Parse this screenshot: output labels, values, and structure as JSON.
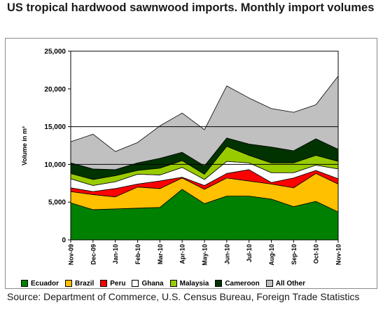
{
  "title": "US tropical hardwood sawnwood imports. Monthly import volumes",
  "source": "Source: Department of Commerce, U.S. Census Bureau, Foreign Trade Statistics",
  "chart_data": {
    "type": "area",
    "stacked": true,
    "ylabel": "Volume in m³",
    "ylim": [
      0,
      25000
    ],
    "yticks": [
      "0",
      "5,000",
      "10,000",
      "15,000",
      "20,000",
      "25,000"
    ],
    "grid": "horizontal at 10,000 and 15,000",
    "legend_position": "bottom",
    "categories": [
      "Nov-09",
      "Dec-09",
      "Jan-10",
      "Feb-10",
      "Mar-10",
      "Apr-10",
      "May-10",
      "Jun-10",
      "Jul-10",
      "Aug-10",
      "Sep-10",
      "Oct-10",
      "Nov-10"
    ],
    "series": [
      {
        "name": "Ecuador",
        "color": "#008000",
        "values": [
          4900,
          4000,
          4100,
          4200,
          4300,
          6700,
          4800,
          5800,
          5800,
          5400,
          4400,
          5100,
          3700
        ]
      },
      {
        "name": "Brazil",
        "color": "#ffc000",
        "values": [
          1500,
          2000,
          1600,
          2800,
          2500,
          1500,
          1900,
          2400,
          2000,
          2000,
          2500,
          3700,
          3700
        ]
      },
      {
        "name": "Peru",
        "color": "#ff0000",
        "values": [
          500,
          400,
          1100,
          400,
          1000,
          100,
          500,
          600,
          1500,
          200,
          1300,
          400,
          700
        ]
      },
      {
        "name": "Ghana",
        "color": "#ffffff",
        "values": [
          1200,
          800,
          900,
          1300,
          800,
          1300,
          800,
          1600,
          900,
          1300,
          700,
          700,
          1300
        ]
      },
      {
        "name": "Malaysia",
        "color": "#99cc00",
        "values": [
          700,
          800,
          800,
          500,
          900,
          900,
          700,
          2000,
          1000,
          1300,
          1300,
          1300,
          1000
        ]
      },
      {
        "name": "Cameroon",
        "color": "#003300",
        "values": [
          1400,
          1400,
          800,
          1000,
          1300,
          1100,
          1100,
          1100,
          1500,
          2100,
          1600,
          2200,
          1600
        ]
      },
      {
        "name": "All Other",
        "color": "#c0c0c0",
        "values": [
          2800,
          4600,
          2400,
          2700,
          4300,
          5200,
          4800,
          6900,
          6100,
          5100,
          5100,
          4500,
          9700
        ]
      }
    ]
  }
}
